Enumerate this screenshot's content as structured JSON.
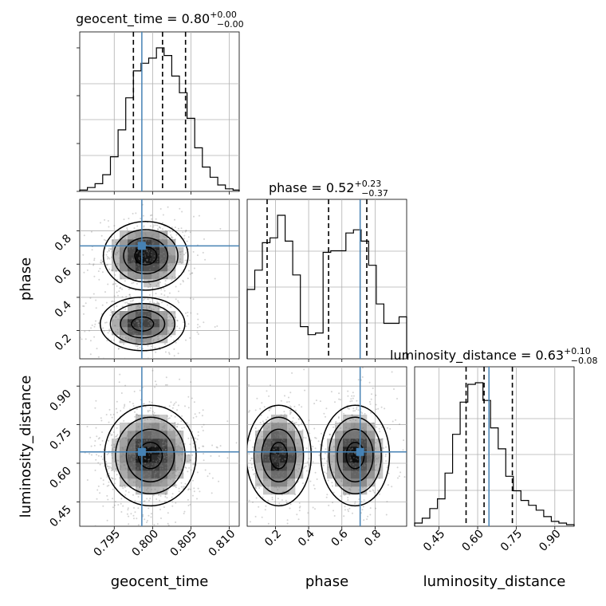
{
  "chart_data": {
    "type": "corner",
    "parameters": [
      "geocent_time",
      "phase",
      "luminosity_distance"
    ],
    "titles": [
      {
        "param": "geocent_time",
        "label": "geocent_time = 0.80",
        "plus": "+0.00",
        "minus": "−0.00"
      },
      {
        "param": "phase",
        "label": "phase = 0.52",
        "plus": "+0.23",
        "minus": "−0.37"
      },
      {
        "param": "luminosity_distance",
        "label": "luminosity_distance = 0.63",
        "plus": "+0.10",
        "minus": "−0.08"
      }
    ],
    "ranges": {
      "geocent_time": [
        0.7905,
        0.8113
      ],
      "phase": [
        0.03,
        0.99
      ],
      "luminosity_distance": [
        0.355,
        0.975
      ]
    },
    "ticks": {
      "geocent_time": [
        0.795,
        0.8,
        0.805,
        0.81
      ],
      "phase": [
        0.2,
        0.4,
        0.6,
        0.8
      ],
      "phase_y": [
        0.2,
        0.4,
        0.6,
        0.8
      ],
      "luminosity_distance": [
        0.45,
        0.6,
        0.75,
        0.9
      ]
    },
    "tick_labels": {
      "geocent_time": [
        "0.795",
        "0.800",
        "0.805",
        "0.810"
      ],
      "phase": [
        "0.2",
        "0.4",
        "0.6",
        "0.8"
      ],
      "luminosity_distance": [
        "0.45",
        "0.60",
        "0.75",
        "0.90"
      ]
    },
    "truths": {
      "geocent_time": 0.7986,
      "phase": 0.71,
      "luminosity_distance": 0.644
    },
    "quantiles": {
      "geocent_time": [
        0.7975,
        0.8013,
        0.8043
      ],
      "phase": [
        0.15,
        0.52,
        0.75
      ],
      "luminosity_distance": [
        0.555,
        0.625,
        0.735
      ]
    },
    "histograms": {
      "geocent_time": {
        "edges": [
          0.7905,
          0.7915,
          0.7925,
          0.7935,
          0.7945,
          0.7955,
          0.7965,
          0.7975,
          0.7985,
          0.7995,
          0.8005,
          0.8015,
          0.8025,
          0.8035,
          0.8045,
          0.8055,
          0.8065,
          0.8075,
          0.8085,
          0.8095,
          0.8105,
          0.8113
        ],
        "counts": [
          1,
          3,
          6,
          13,
          27,
          48,
          73,
          94,
          100,
          104,
          112,
          106,
          90,
          77,
          57,
          34,
          19,
          11,
          5,
          2,
          1
        ]
      },
      "phase": {
        "edges": [
          0.03,
          0.0757,
          0.1214,
          0.1671,
          0.2129,
          0.2586,
          0.3043,
          0.35,
          0.3957,
          0.4414,
          0.4871,
          0.5329,
          0.5786,
          0.6243,
          0.67,
          0.7157,
          0.7614,
          0.8071,
          0.8529,
          0.8986,
          0.9443,
          0.99
        ],
        "counts": [
          43,
          55,
          72,
          75,
          89,
          73,
          52,
          20,
          15,
          16,
          66,
          67,
          67,
          78,
          80,
          73,
          58,
          34,
          22,
          22,
          26
        ]
      },
      "luminosity_distance": {
        "edges": [
          0.355,
          0.3845,
          0.414,
          0.4436,
          0.4731,
          0.5026,
          0.5321,
          0.5617,
          0.5912,
          0.6207,
          0.6502,
          0.6798,
          0.7093,
          0.7388,
          0.7683,
          0.7979,
          0.8274,
          0.8569,
          0.8864,
          0.9159,
          0.9455,
          0.975
        ],
        "counts": [
          2,
          5,
          11,
          17,
          33,
          57,
          77,
          88,
          89,
          78,
          61,
          48,
          31,
          22,
          16,
          13,
          10,
          6,
          3,
          2,
          1
        ]
      }
    },
    "density_2d": [
      {
        "x": "geocent_time",
        "y": "phase",
        "modes": [
          {
            "cx": 0.7991,
            "cy": 0.65,
            "sx": 0.0024,
            "sy": 0.09,
            "weight": 0.55
          },
          {
            "cx": 0.7987,
            "cy": 0.24,
            "sx": 0.0024,
            "sy": 0.07,
            "weight": 0.45
          }
        ]
      },
      {
        "x": "geocent_time",
        "y": "luminosity_distance",
        "modes": [
          {
            "cx": 0.7997,
            "cy": 0.63,
            "sx": 0.0026,
            "sy": 0.085,
            "weight": 1.0
          }
        ]
      },
      {
        "x": "phase",
        "y": "luminosity_distance",
        "modes": [
          {
            "cx": 0.22,
            "cy": 0.63,
            "sx": 0.085,
            "sy": 0.085,
            "weight": 0.5
          },
          {
            "cx": 0.68,
            "cy": 0.63,
            "sx": 0.09,
            "sy": 0.085,
            "weight": 0.5
          }
        ]
      }
    ],
    "grid": true,
    "colors": {
      "truth": "#4682b4",
      "hist": "#000000",
      "points": "#808080"
    }
  }
}
